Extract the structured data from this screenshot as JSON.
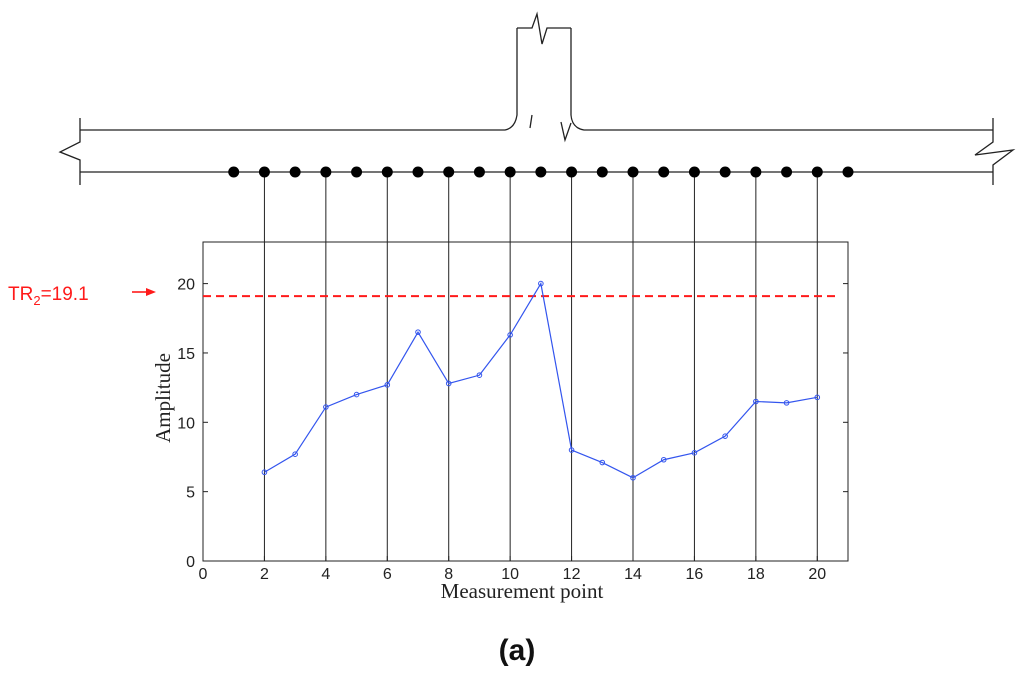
{
  "chart_data": {
    "type": "line",
    "title": "",
    "xlabel": "Measurement point",
    "ylabel": "Amplitude",
    "xlim": [
      0,
      21
    ],
    "ylim": [
      0,
      23
    ],
    "x_ticks": [
      0,
      2,
      4,
      6,
      8,
      10,
      12,
      14,
      16,
      18,
      20
    ],
    "y_ticks": [
      0,
      5,
      10,
      15,
      20
    ],
    "x": [
      2,
      3,
      4,
      5,
      6,
      7,
      8,
      9,
      10,
      11,
      12,
      13,
      14,
      15,
      16,
      17,
      18,
      19,
      20
    ],
    "series": [
      {
        "values": [
          6.4,
          7.7,
          11.1,
          12.0,
          12.7,
          16.5,
          12.8,
          13.4,
          16.3,
          20.0,
          8.0,
          7.1,
          6.0,
          7.3,
          7.8,
          9.0,
          11.5,
          11.4,
          11.8
        ],
        "color": "#3355ee"
      }
    ],
    "threshold": {
      "label_main": "TR",
      "label_sub": "2",
      "label_value": "=19.1",
      "value": 19.1,
      "color": "#ff1a1a"
    },
    "measurement_points": [
      1,
      2,
      3,
      4,
      5,
      6,
      7,
      8,
      9,
      10,
      11,
      12,
      13,
      14,
      15,
      16,
      17,
      18,
      19,
      20,
      21
    ],
    "vertical_guides": [
      2,
      4,
      6,
      8,
      10,
      12,
      14,
      16,
      18,
      20
    ],
    "grid": false
  },
  "caption": "(a)"
}
